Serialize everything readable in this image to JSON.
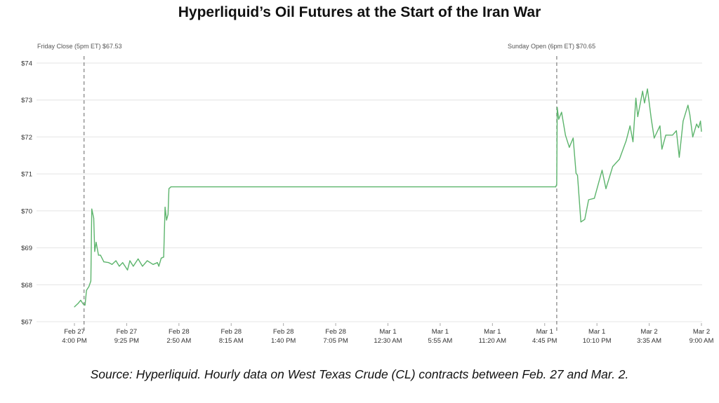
{
  "chart_data": {
    "type": "line",
    "title": "Hyperliquid’s Oil Futures at the Start of the Iran War",
    "caption": "Source: Hyperliquid. Hourly data on West Texas Crude (CL) contracts between Feb. 27 and Mar. 2.",
    "xlabel": "",
    "ylabel": "",
    "ylim": [
      67,
      74
    ],
    "xlim": [
      "Feb 27 16:00",
      "Mar 2 09:00"
    ],
    "grid": "horizontal",
    "line_color": "#5cb46c",
    "y_ticks": [
      "$74",
      "$73",
      "$72",
      "$71",
      "$70",
      "$69",
      "$68",
      "$67"
    ],
    "y_tick_values": [
      74,
      73,
      72,
      71,
      70,
      69,
      68,
      67
    ],
    "x_ticks": [
      {
        "t": "Feb 27 16:00",
        "l1": "Feb 27",
        "l2": "4:00 PM"
      },
      {
        "t": "Feb 27 21:25",
        "l1": "Feb 27",
        "l2": "9:25 PM"
      },
      {
        "t": "Feb 28 02:50",
        "l1": "Feb 28",
        "l2": "2:50 AM"
      },
      {
        "t": "Feb 28 08:15",
        "l1": "Feb 28",
        "l2": "8:15 AM"
      },
      {
        "t": "Feb 28 13:40",
        "l1": "Feb 28",
        "l2": "1:40 PM"
      },
      {
        "t": "Feb 28 19:05",
        "l1": "Feb 28",
        "l2": "7:05 PM"
      },
      {
        "t": "Mar 1 00:30",
        "l1": "Mar 1",
        "l2": "12:30 AM"
      },
      {
        "t": "Mar 1 05:55",
        "l1": "Mar 1",
        "l2": "5:55 AM"
      },
      {
        "t": "Mar 1 11:20",
        "l1": "Mar 1",
        "l2": "11:20 AM"
      },
      {
        "t": "Mar 1 16:45",
        "l1": "Mar 1",
        "l2": "4:45 PM"
      },
      {
        "t": "Mar 1 22:10",
        "l1": "Mar 1",
        "l2": "10:10 PM"
      },
      {
        "t": "Mar 2 03:35",
        "l1": "Mar 2",
        "l2": "3:35 AM"
      },
      {
        "t": "Mar 2 09:00",
        "l1": "Mar 2",
        "l2": "9:00 AM"
      }
    ],
    "annotations": [
      {
        "t": "Feb 27 17:00",
        "label": "Friday Close (5pm ET) $67.53"
      },
      {
        "t": "Mar 1 18:00",
        "label": "Sunday Open (6pm ET) $70.65"
      }
    ],
    "series": [
      {
        "points": [
          [
            "Feb 27 16:00",
            67.4
          ],
          [
            "Feb 27 16:24",
            67.5
          ],
          [
            "Feb 27 16:39",
            67.58
          ],
          [
            "Feb 27 16:54",
            67.48
          ],
          [
            "Feb 27 17:06",
            67.45
          ],
          [
            "Feb 27 17:15",
            67.85
          ],
          [
            "Feb 27 17:30",
            67.95
          ],
          [
            "Feb 27 17:42",
            68.1
          ],
          [
            "Feb 27 17:48",
            70.05
          ],
          [
            "Feb 27 18:00",
            69.8
          ],
          [
            "Feb 27 18:06",
            68.9
          ],
          [
            "Feb 27 18:15",
            69.15
          ],
          [
            "Feb 27 18:30",
            68.8
          ],
          [
            "Feb 27 18:42",
            68.8
          ],
          [
            "Feb 27 19:03",
            68.62
          ],
          [
            "Feb 27 19:33",
            68.6
          ],
          [
            "Feb 27 19:54",
            68.55
          ],
          [
            "Feb 27 20:18",
            68.65
          ],
          [
            "Feb 27 20:39",
            68.5
          ],
          [
            "Feb 27 21:00",
            68.6
          ],
          [
            "Feb 27 21:30",
            68.4
          ],
          [
            "Feb 27 21:45",
            68.65
          ],
          [
            "Feb 27 22:06",
            68.5
          ],
          [
            "Feb 27 22:36",
            68.7
          ],
          [
            "Feb 27 23:03",
            68.5
          ],
          [
            "Feb 27 23:33",
            68.65
          ],
          [
            "Feb 28 00:09",
            68.55
          ],
          [
            "Feb 28 00:36",
            68.6
          ],
          [
            "Feb 28 00:45",
            68.5
          ],
          [
            "Feb 28 01:00",
            68.72
          ],
          [
            "Feb 28 01:15",
            68.75
          ],
          [
            "Feb 28 01:24",
            70.1
          ],
          [
            "Feb 28 01:33",
            69.75
          ],
          [
            "Feb 28 01:42",
            69.9
          ],
          [
            "Feb 28 01:48",
            70.6
          ],
          [
            "Feb 28 02:00",
            70.65
          ],
          [
            "Mar 1 17:54",
            70.65
          ],
          [
            "Mar 1 18:00",
            70.72
          ],
          [
            "Mar 1 18:03",
            72.8
          ],
          [
            "Mar 1 18:12",
            72.48
          ],
          [
            "Mar 1 18:30",
            72.67
          ],
          [
            "Mar 1 18:54",
            72.05
          ],
          [
            "Mar 1 19:18",
            71.72
          ],
          [
            "Mar 1 19:42",
            71.97
          ],
          [
            "Mar 1 20:00",
            71.02
          ],
          [
            "Mar 1 20:09",
            70.96
          ],
          [
            "Mar 1 20:30",
            69.7
          ],
          [
            "Mar 1 20:54",
            69.77
          ],
          [
            "Mar 1 21:18",
            70.3
          ],
          [
            "Mar 1 21:54",
            70.34
          ],
          [
            "Mar 1 22:42",
            71.1
          ],
          [
            "Mar 1 23:06",
            70.6
          ],
          [
            "Mar 1 23:48",
            71.2
          ],
          [
            "Mar 2 00:30",
            71.4
          ],
          [
            "Mar 2 01:12",
            71.9
          ],
          [
            "Mar 2 01:36",
            72.3
          ],
          [
            "Mar 2 01:54",
            71.87
          ],
          [
            "Mar 2 02:12",
            73.05
          ],
          [
            "Mar 2 02:24",
            72.55
          ],
          [
            "Mar 2 02:54",
            73.24
          ],
          [
            "Mar 2 03:06",
            72.92
          ],
          [
            "Mar 2 03:24",
            73.3
          ],
          [
            "Mar 2 03:48",
            72.48
          ],
          [
            "Mar 2 04:06",
            71.97
          ],
          [
            "Mar 2 04:42",
            72.3
          ],
          [
            "Mar 2 04:54",
            71.67
          ],
          [
            "Mar 2 05:18",
            72.05
          ],
          [
            "Mar 2 06:00",
            72.05
          ],
          [
            "Mar 2 06:24",
            72.17
          ],
          [
            "Mar 2 06:42",
            71.45
          ],
          [
            "Mar 2 07:06",
            72.43
          ],
          [
            "Mar 2 07:36",
            72.86
          ],
          [
            "Mar 2 07:48",
            72.6
          ],
          [
            "Mar 2 08:06",
            72.0
          ],
          [
            "Mar 2 08:30",
            72.35
          ],
          [
            "Mar 2 08:42",
            72.25
          ],
          [
            "Mar 2 08:54",
            72.43
          ],
          [
            "Mar 2 09:00",
            72.15
          ]
        ]
      }
    ]
  }
}
